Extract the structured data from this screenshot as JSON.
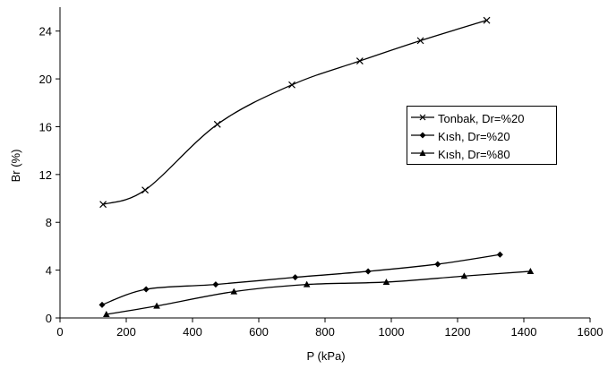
{
  "chart_data": {
    "type": "line",
    "title": "",
    "xlabel": "P (kPa)",
    "ylabel": "Br (%)",
    "xlim": [
      0,
      1600
    ],
    "ylim": [
      0,
      26
    ],
    "x_ticks": [
      "0",
      "200",
      "400",
      "600",
      "800",
      "1000",
      "1200",
      "1400",
      "1600"
    ],
    "y_ticks": [
      "0",
      "4",
      "8",
      "12",
      "16",
      "20",
      "24"
    ],
    "grid": false,
    "legend_position": "right",
    "series": [
      {
        "name": "Tonbak, Dr=%20",
        "marker": "x",
        "color": "#000000",
        "points": [
          [
            130,
            9.5
          ],
          [
            257,
            10.7
          ],
          [
            475,
            16.2
          ],
          [
            700,
            19.5
          ],
          [
            905,
            21.5
          ],
          [
            1088,
            23.2
          ],
          [
            1288,
            24.9
          ]
        ]
      },
      {
        "name": "Kısh, Dr=%20",
        "marker": "diamond",
        "color": "#000000",
        "points": [
          [
            127,
            1.1
          ],
          [
            260,
            2.4
          ],
          [
            470,
            2.8
          ],
          [
            710,
            3.4
          ],
          [
            930,
            3.9
          ],
          [
            1140,
            4.5
          ],
          [
            1328,
            5.3
          ]
        ]
      },
      {
        "name": "Kısh, Dr=%80",
        "marker": "triangle",
        "color": "#000000",
        "points": [
          [
            140,
            0.3
          ],
          [
            292,
            1.0
          ],
          [
            525,
            2.2
          ],
          [
            745,
            2.8
          ],
          [
            985,
            3.0
          ],
          [
            1220,
            3.5
          ],
          [
            1420,
            3.9
          ]
        ]
      }
    ]
  }
}
